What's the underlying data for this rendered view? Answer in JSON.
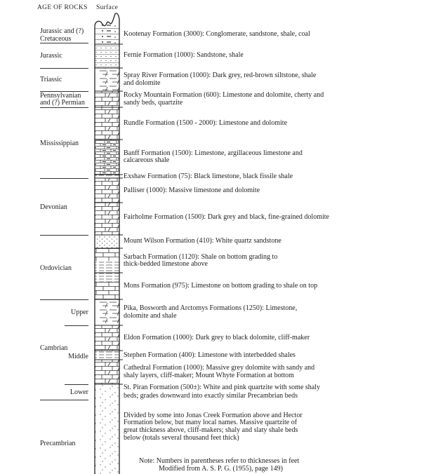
{
  "header": {
    "age_of_rocks": "AGE OF ROCKS",
    "surface": "Surface"
  },
  "ages": {
    "jurassic_cretaceous_1": "Jurassic and (?)",
    "jurassic_cretaceous_2": "Cretaceous",
    "jurassic": "Jurassic",
    "triassic": "Triassic",
    "pennsylvanian_1": "Pennsylvanian",
    "pennsylvanian_2": "and (?) Permian",
    "mississippian": "Mississippian",
    "devonian": "Devonian",
    "ordovician": "Ordovician",
    "upper": "Upper",
    "cambrian": "Cambrian",
    "middle": "Middle",
    "lower": "Lower",
    "precambrian": "Precambrian"
  },
  "formations": {
    "kootenay": [
      "Kootenay Formation (3000):  Conglomerate, sandstone, shale, coal"
    ],
    "fernie": [
      "Fernie Formation (1000):  Sandstone, shale"
    ],
    "spray_river": [
      "Spray River Formation (1000):  Dark grey, red-brown siltstone, shale",
      "and dolomite"
    ],
    "rocky_mountain": [
      "Rocky Mountain Formation (600):  Limestone and dolomite, cherty and",
      "sandy beds, quartzite"
    ],
    "rundle": [
      "Rundle Formation (1500 - 2000):  Limestone and dolomite"
    ],
    "banff": [
      "Banff Formation (1500):  Limestone, argillaceous limestone and",
      "calcareous shale"
    ],
    "exshaw": [
      "Exshaw Formation (75):  Black limestone, black fissile shale"
    ],
    "palliser": [
      "Palliser (1000):  Massive limestone and dolomite"
    ],
    "fairholme": [
      "Fairholme Formation (1500):  Dark grey and black, fine-grained dolomite"
    ],
    "mount_wilson": [
      "Mount Wilson Formation (410):  White quartz sandstone"
    ],
    "sarbach": [
      "Sarbach Formation (1120):  Shale on bottom grading to",
      "thick-bedded limestone above"
    ],
    "mons": [
      "Mons Formation (975):  Limestone on bottom grading to shale on top"
    ],
    "pika": [
      "Pika, Bosworth and Arctomys Formations (1250):  Limestone,",
      "dolomite and shale"
    ],
    "eldon": [
      "Eldon Formation (1000):  Dark grey to black dolomite, cliff-maker"
    ],
    "stephen": [
      "Stephen Formation (400):  Limestone with interbedded shales"
    ],
    "cathedral": [
      "Cathedral Formation (1000):  Massive grey dolomite with sandy and",
      "shaly layers, cliff-maker; Mount Whyte Formation at bottom"
    ],
    "st_piran": [
      "St. Piran Formation (500±):  White and pink quartzite with some shaly",
      "beds; grades downward into exactly similar Precambrian beds"
    ],
    "precambrian": [
      "Divided by some into Jonas Creek Formation above and Hector",
      "Formation below, but many local names.  Massive quartzite of",
      "great thickness above, cliff-makers;  shaly and slaty shale beds",
      "below (totals several thousand feet thick)"
    ]
  },
  "note": [
    "Note:  Numbers in parentheses refer to thicknesses in feet",
    "Modified from A. S. P. G. (1955), page 149)"
  ]
}
